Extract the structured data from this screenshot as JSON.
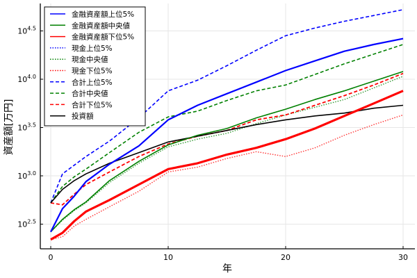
{
  "chart_data": {
    "type": "line",
    "title": "",
    "xlabel": "年",
    "ylabel": "資産額[万円]",
    "yscale": "log10",
    "xlim": [
      -0.8,
      30.8
    ],
    "ylim_log10": [
      2.23,
      4.78
    ],
    "xticks": [
      0,
      10,
      20,
      30
    ],
    "xtick_labels": [
      "0",
      "10",
      "20",
      "30"
    ],
    "yticks_log10": [
      2.5,
      3.0,
      3.5,
      4.0,
      4.5
    ],
    "ytick_labels": [
      {
        "base": "10",
        "exp": "2.5"
      },
      {
        "base": "10",
        "exp": "3.0"
      },
      {
        "base": "10",
        "exp": "3.5"
      },
      {
        "base": "10",
        "exp": "4.0"
      },
      {
        "base": "10",
        "exp": "4.5"
      }
    ],
    "grid": true,
    "legend_position": "top-left",
    "x": [
      0,
      1,
      2,
      3,
      5,
      7.5,
      10,
      12.5,
      15,
      17.5,
      20,
      22.5,
      25,
      27.5,
      30
    ],
    "series": [
      {
        "name": "金融資産額上位5%",
        "color": "#0000ff",
        "style": "solid",
        "width": 2.2,
        "log10_values": [
          2.42,
          2.66,
          2.79,
          2.94,
          3.12,
          3.31,
          3.58,
          3.73,
          3.85,
          3.97,
          4.09,
          4.19,
          4.29,
          4.36,
          4.42
        ]
      },
      {
        "name": "金融資産額中央値",
        "color": "#008000",
        "style": "solid",
        "width": 1.6,
        "log10_values": [
          2.42,
          2.55,
          2.65,
          2.73,
          2.95,
          3.15,
          3.32,
          3.42,
          3.49,
          3.6,
          3.69,
          3.79,
          3.88,
          3.98,
          4.08
        ]
      },
      {
        "name": "金融資産額下位5%",
        "color": "#ff0000",
        "style": "solid",
        "width": 3.2,
        "log10_values": [
          2.34,
          2.41,
          2.53,
          2.63,
          2.75,
          2.91,
          3.07,
          3.13,
          3.22,
          3.29,
          3.38,
          3.49,
          3.62,
          3.75,
          3.88
        ]
      },
      {
        "name": "現金上位5%",
        "color": "#0000ff",
        "style": "dotted",
        "width": 1.4,
        "log10_values": [
          2.42,
          2.66,
          2.79,
          2.94,
          3.12,
          3.31,
          3.58,
          3.73,
          3.85,
          3.97,
          4.09,
          4.19,
          4.29,
          4.36,
          4.42
        ]
      },
      {
        "name": "現金中央値",
        "color": "#008000",
        "style": "dotted",
        "width": 1.4,
        "log10_values": [
          2.42,
          2.54,
          2.64,
          2.72,
          2.93,
          3.13,
          3.3,
          3.38,
          3.44,
          3.54,
          3.63,
          3.71,
          3.79,
          3.91,
          4.03
        ]
      },
      {
        "name": "現金下位5%",
        "color": "#ff0000",
        "style": "dotted",
        "width": 1.4,
        "log10_values": [
          2.34,
          2.37,
          2.48,
          2.55,
          2.68,
          2.84,
          3.04,
          3.09,
          3.18,
          3.25,
          3.2,
          3.29,
          3.42,
          3.53,
          3.63
        ]
      },
      {
        "name": "合計上位5%",
        "color": "#0000ff",
        "style": "dashed",
        "width": 1.6,
        "log10_values": [
          2.72,
          3.02,
          3.11,
          3.2,
          3.36,
          3.6,
          3.88,
          3.99,
          4.14,
          4.3,
          4.45,
          4.53,
          4.6,
          4.66,
          4.72
        ]
      },
      {
        "name": "合計中央値",
        "color": "#008000",
        "style": "dashed",
        "width": 1.6,
        "log10_values": [
          2.72,
          2.89,
          2.99,
          3.07,
          3.24,
          3.45,
          3.61,
          3.67,
          3.78,
          3.88,
          3.94,
          4.05,
          4.16,
          4.26,
          4.36
        ]
      },
      {
        "name": "合計下位5%",
        "color": "#ff0000",
        "style": "dashed",
        "width": 1.8,
        "log10_values": [
          2.72,
          2.7,
          2.81,
          2.91,
          3.04,
          3.2,
          3.33,
          3.41,
          3.47,
          3.58,
          3.63,
          3.73,
          3.83,
          3.94,
          4.06
        ]
      },
      {
        "name": "投資額",
        "color": "#000000",
        "style": "solid",
        "width": 1.6,
        "log10_values": [
          2.72,
          2.86,
          2.95,
          3.02,
          3.13,
          3.24,
          3.35,
          3.41,
          3.47,
          3.53,
          3.58,
          3.62,
          3.65,
          3.7,
          3.73
        ]
      }
    ]
  }
}
